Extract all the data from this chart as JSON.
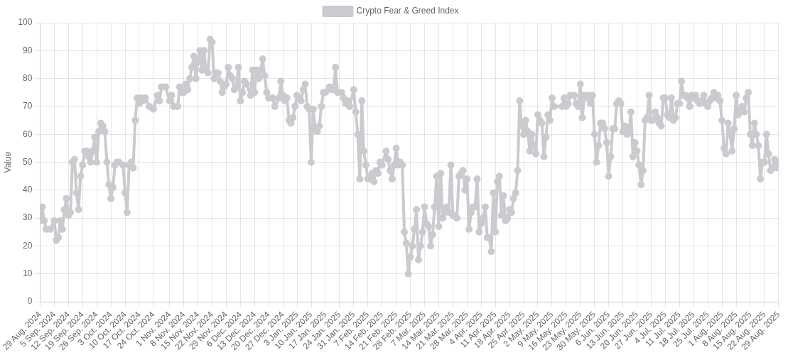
{
  "chart_data": {
    "type": "line",
    "ylabel": "Value",
    "legend": "top",
    "grid": true,
    "marker": "circle",
    "line_style": "solid",
    "xlim": [
      "2024-08-29",
      "2025-08-29"
    ],
    "ylim": [
      0,
      100
    ],
    "yticks": [
      0,
      10,
      20,
      30,
      40,
      50,
      60,
      70,
      80,
      90,
      100
    ],
    "xticks": [
      {
        "value": "2024-08-29",
        "label": "29 Aug. 2024"
      },
      {
        "value": "2024-09-05",
        "label": "5 Sep. 2024"
      },
      {
        "value": "2024-09-12",
        "label": "12 Sep. 2024"
      },
      {
        "value": "2024-09-19",
        "label": "19 Sep. 2024"
      },
      {
        "value": "2024-09-26",
        "label": "26 Sep. 2024"
      },
      {
        "value": "2024-10-03",
        "label": "3 Oct. 2024"
      },
      {
        "value": "2024-10-10",
        "label": "10 Oct. 2024"
      },
      {
        "value": "2024-10-17",
        "label": "17 Oct. 2024"
      },
      {
        "value": "2024-10-24",
        "label": "24 Oct. 2024"
      },
      {
        "value": "2024-11-01",
        "label": "1 Nov. 2024"
      },
      {
        "value": "2024-11-08",
        "label": "8 Nov. 2024"
      },
      {
        "value": "2024-11-15",
        "label": "15 Nov. 2024"
      },
      {
        "value": "2024-11-22",
        "label": "22 Nov. 2024"
      },
      {
        "value": "2024-11-29",
        "label": "29 Nov. 2024"
      },
      {
        "value": "2024-12-06",
        "label": "6 Dec. 2024"
      },
      {
        "value": "2024-12-13",
        "label": "13 Dec. 2024"
      },
      {
        "value": "2024-12-20",
        "label": "20 Dec. 2024"
      },
      {
        "value": "2024-12-27",
        "label": "27 Dec. 2024"
      },
      {
        "value": "2025-01-03",
        "label": "3 Jan. 2025"
      },
      {
        "value": "2025-01-10",
        "label": "10 Jan. 2025"
      },
      {
        "value": "2025-01-17",
        "label": "17 Jan. 2025"
      },
      {
        "value": "2025-01-24",
        "label": "24 Jan. 2025"
      },
      {
        "value": "2025-01-31",
        "label": "31 Jan. 2025"
      },
      {
        "value": "2025-02-07",
        "label": "7 Feb. 2025"
      },
      {
        "value": "2025-02-14",
        "label": "14 Feb. 2025"
      },
      {
        "value": "2025-02-21",
        "label": "21 Feb. 2025"
      },
      {
        "value": "2025-02-28",
        "label": "28 Feb. 2025"
      },
      {
        "value": "2025-03-07",
        "label": "7 Mar. 2025"
      },
      {
        "value": "2025-03-14",
        "label": "14 Mar. 2025"
      },
      {
        "value": "2025-03-21",
        "label": "21 Mar. 2025"
      },
      {
        "value": "2025-03-28",
        "label": "28 Mar. 2025"
      },
      {
        "value": "2025-04-04",
        "label": "4 Apr. 2025"
      },
      {
        "value": "2025-04-11",
        "label": "11 Apr. 2025"
      },
      {
        "value": "2025-04-18",
        "label": "18 Apr. 2025"
      },
      {
        "value": "2025-04-25",
        "label": "25 Apr. 2025"
      },
      {
        "value": "2025-05-02",
        "label": "2 May. 2025"
      },
      {
        "value": "2025-05-09",
        "label": "9 May. 2025"
      },
      {
        "value": "2025-05-16",
        "label": "16 May. 2025"
      },
      {
        "value": "2025-05-23",
        "label": "23 May. 2025"
      },
      {
        "value": "2025-05-30",
        "label": "30 May. 2025"
      },
      {
        "value": "2025-06-06",
        "label": "6 Jun. 2025"
      },
      {
        "value": "2025-06-13",
        "label": "13 Jun. 2025"
      },
      {
        "value": "2025-06-20",
        "label": "20 Jun. 2025"
      },
      {
        "value": "2025-06-27",
        "label": "27 Jun. 2025"
      },
      {
        "value": "2025-07-04",
        "label": "4 Jul. 2025"
      },
      {
        "value": "2025-07-11",
        "label": "11 Jul. 2025"
      },
      {
        "value": "2025-07-18",
        "label": "18 Jul. 2025"
      },
      {
        "value": "2025-07-25",
        "label": "25 Jul. 2025"
      },
      {
        "value": "2025-08-01",
        "label": "1 Aug. 2025"
      },
      {
        "value": "2025-08-08",
        "label": "8 Aug. 2025"
      },
      {
        "value": "2025-08-15",
        "label": "15 Aug. 2025"
      },
      {
        "value": "2025-08-22",
        "label": "22 Aug. 2025"
      },
      {
        "value": "2025-08-29",
        "label": "29 Aug. 2025"
      }
    ],
    "series": [
      {
        "name": "Crypto Fear & Greed Index",
        "color": "#c9cbcf",
        "x": [
          "2024-08-29",
          "2024-08-30",
          "2024-08-31",
          "2024-09-01",
          "2024-09-03",
          "2024-09-05",
          "2024-09-06",
          "2024-09-07",
          "2024-09-08",
          "2024-09-09",
          "2024-09-10",
          "2024-09-11",
          "2024-09-12",
          "2024-09-13",
          "2024-09-14",
          "2024-09-15",
          "2024-09-16",
          "2024-09-17",
          "2024-09-18",
          "2024-09-19",
          "2024-09-20",
          "2024-09-21",
          "2024-09-22",
          "2024-09-23",
          "2024-09-24",
          "2024-09-25",
          "2024-09-26",
          "2024-09-27",
          "2024-09-28",
          "2024-09-29",
          "2024-09-30",
          "2024-10-01",
          "2024-10-02",
          "2024-10-03",
          "2024-10-04",
          "2024-10-05",
          "2024-10-06",
          "2024-10-07",
          "2024-10-09",
          "2024-10-10",
          "2024-10-11",
          "2024-10-12",
          "2024-10-13",
          "2024-10-14",
          "2024-10-15",
          "2024-10-16",
          "2024-10-17",
          "2024-10-18",
          "2024-10-19",
          "2024-10-20",
          "2024-10-22",
          "2024-10-24",
          "2024-10-26",
          "2024-10-27",
          "2024-10-28",
          "2024-10-30",
          "2024-11-01",
          "2024-11-02",
          "2024-11-03",
          "2024-11-05",
          "2024-11-06",
          "2024-11-07",
          "2024-11-08",
          "2024-11-09",
          "2024-11-10",
          "2024-11-11",
          "2024-11-12",
          "2024-11-13",
          "2024-11-14",
          "2024-11-15",
          "2024-11-16",
          "2024-11-17",
          "2024-11-18",
          "2024-11-19",
          "2024-11-20",
          "2024-11-21",
          "2024-11-22",
          "2024-11-23",
          "2024-11-24",
          "2024-11-25",
          "2024-11-26",
          "2024-11-27",
          "2024-11-28",
          "2024-11-29",
          "2024-11-30",
          "2024-12-01",
          "2024-12-02",
          "2024-12-03",
          "2024-12-04",
          "2024-12-05",
          "2024-12-06",
          "2024-12-07",
          "2024-12-08",
          "2024-12-09",
          "2024-12-11",
          "2024-12-12",
          "2024-12-13",
          "2024-12-14",
          "2024-12-15",
          "2024-12-16",
          "2024-12-17",
          "2024-12-18",
          "2024-12-19",
          "2024-12-20",
          "2024-12-22",
          "2024-12-23",
          "2024-12-25",
          "2024-12-26",
          "2024-12-27",
          "2024-12-28",
          "2024-12-29",
          "2024-12-30",
          "2024-12-31",
          "2025-01-01",
          "2025-01-02",
          "2025-01-03",
          "2025-01-05",
          "2025-01-06",
          "2025-01-07",
          "2025-01-08",
          "2025-01-09",
          "2025-01-10",
          "2025-01-11",
          "2025-01-12",
          "2025-01-13",
          "2025-01-14",
          "2025-01-15",
          "2025-01-16",
          "2025-01-17",
          "2025-01-19",
          "2025-01-20",
          "2025-01-21",
          "2025-01-22",
          "2025-01-23",
          "2025-01-25",
          "2025-01-26",
          "2025-01-27",
          "2025-01-28",
          "2025-01-29",
          "2025-01-31",
          "2025-02-01",
          "2025-02-02",
          "2025-02-03",
          "2025-02-04",
          "2025-02-05",
          "2025-02-06",
          "2025-02-07",
          "2025-02-08",
          "2025-02-09",
          "2025-02-10",
          "2025-02-11",
          "2025-02-12",
          "2025-02-13",
          "2025-02-14",
          "2025-02-16",
          "2025-02-17",
          "2025-02-18",
          "2025-02-19",
          "2025-02-20",
          "2025-02-21",
          "2025-02-22",
          "2025-02-23",
          "2025-02-24",
          "2025-02-25",
          "2025-02-26",
          "2025-02-27",
          "2025-02-28",
          "2025-03-01",
          "2025-03-02",
          "2025-03-03",
          "2025-03-04",
          "2025-03-05",
          "2025-03-06",
          "2025-03-07",
          "2025-03-08",
          "2025-03-09",
          "2025-03-10",
          "2025-03-11",
          "2025-03-12",
          "2025-03-13",
          "2025-03-14",
          "2025-03-15",
          "2025-03-16",
          "2025-03-17",
          "2025-03-18",
          "2025-03-19",
          "2025-03-20",
          "2025-03-21",
          "2025-03-22",
          "2025-03-23",
          "2025-03-24",
          "2025-03-25",
          "2025-03-26",
          "2025-03-27",
          "2025-03-28",
          "2025-03-29",
          "2025-03-30",
          "2025-03-31",
          "2025-04-01",
          "2025-04-02",
          "2025-04-03",
          "2025-04-04",
          "2025-04-05",
          "2025-04-06",
          "2025-04-07",
          "2025-04-08",
          "2025-04-09",
          "2025-04-10",
          "2025-04-11",
          "2025-04-12",
          "2025-04-13",
          "2025-04-14",
          "2025-04-15",
          "2025-04-16",
          "2025-04-17",
          "2025-04-18",
          "2025-04-19",
          "2025-04-20",
          "2025-04-21",
          "2025-04-22",
          "2025-04-23",
          "2025-04-24",
          "2025-04-25",
          "2025-04-26",
          "2025-04-27",
          "2025-04-28",
          "2025-04-29",
          "2025-04-30",
          "2025-05-01",
          "2025-05-02",
          "2025-05-03",
          "2025-05-04",
          "2025-05-05",
          "2025-05-06",
          "2025-05-07",
          "2025-05-08",
          "2025-05-09",
          "2025-05-10",
          "2025-05-14",
          "2025-05-15",
          "2025-05-16",
          "2025-05-17",
          "2025-05-18",
          "2025-05-20",
          "2025-05-21",
          "2025-05-22",
          "2025-05-23",
          "2025-05-24",
          "2025-05-25",
          "2025-05-26",
          "2025-05-27",
          "2025-05-28",
          "2025-05-29",
          "2025-05-30",
          "2025-05-31",
          "2025-06-01",
          "2025-06-02",
          "2025-06-03",
          "2025-06-04",
          "2025-06-05",
          "2025-06-06",
          "2025-06-07",
          "2025-06-08",
          "2025-06-09",
          "2025-06-10",
          "2025-06-11",
          "2025-06-12",
          "2025-06-13",
          "2025-06-14",
          "2025-06-15",
          "2025-06-16",
          "2025-06-17",
          "2025-06-18",
          "2025-06-19",
          "2025-06-20",
          "2025-06-21",
          "2025-06-22",
          "2025-06-23",
          "2025-06-24",
          "2025-06-25",
          "2025-06-26",
          "2025-06-27",
          "2025-06-28",
          "2025-06-29",
          "2025-06-30",
          "2025-07-01",
          "2025-07-02",
          "2025-07-03",
          "2025-07-04",
          "2025-07-05",
          "2025-07-06",
          "2025-07-07",
          "2025-07-08",
          "2025-07-09",
          "2025-07-10",
          "2025-07-11",
          "2025-07-12",
          "2025-07-13",
          "2025-07-14",
          "2025-07-15",
          "2025-07-16",
          "2025-07-17",
          "2025-07-18",
          "2025-07-19",
          "2025-07-20",
          "2025-07-21",
          "2025-07-22",
          "2025-07-23",
          "2025-07-24",
          "2025-07-25",
          "2025-07-26",
          "2025-07-27",
          "2025-07-28",
          "2025-07-29",
          "2025-07-30",
          "2025-07-31",
          "2025-08-01",
          "2025-08-02",
          "2025-08-03",
          "2025-08-04",
          "2025-08-05",
          "2025-08-06",
          "2025-08-07",
          "2025-08-08",
          "2025-08-09",
          "2025-08-10",
          "2025-08-11",
          "2025-08-12",
          "2025-08-13",
          "2025-08-14",
          "2025-08-15",
          "2025-08-16",
          "2025-08-17",
          "2025-08-18",
          "2025-08-19",
          "2025-08-20",
          "2025-08-21",
          "2025-08-22",
          "2025-08-23",
          "2025-08-24",
          "2025-08-25",
          "2025-08-26",
          "2025-08-27",
          "2025-08-28",
          "2025-08-29"
        ],
        "values": [
          29,
          34,
          29,
          26,
          26,
          29,
          22,
          23,
          29,
          26,
          33,
          37,
          31,
          32,
          50,
          51,
          39,
          33,
          45,
          49,
          54,
          54,
          52,
          50,
          54,
          59,
          50,
          61,
          64,
          63,
          61,
          50,
          42,
          37,
          41,
          49,
          50,
          50,
          49,
          39,
          32,
          49,
          50,
          48,
          65,
          73,
          71,
          73,
          72,
          73,
          70,
          69,
          74,
          72,
          77,
          77,
          72,
          74,
          70,
          70,
          77,
          75,
          75,
          78,
          76,
          80,
          84,
          88,
          80,
          86,
          90,
          83,
          90,
          83,
          82,
          94,
          93,
          80,
          82,
          82,
          79,
          75,
          77,
          78,
          84,
          81,
          80,
          76,
          77,
          84,
          72,
          75,
          79,
          78,
          74,
          83,
          75,
          83,
          80,
          83,
          87,
          81,
          75,
          73,
          73,
          70,
          73,
          79,
          74,
          72,
          73,
          65,
          64,
          66,
          70,
          74,
          72,
          76,
          78,
          70,
          69,
          50,
          69,
          62,
          61,
          63,
          70,
          75,
          75,
          77,
          76,
          76,
          84,
          75,
          75,
          73,
          71,
          72,
          70,
          76,
          68,
          60,
          44,
          72,
          54,
          49,
          44,
          44,
          46,
          43,
          47,
          46,
          50,
          49,
          54,
          51,
          47,
          44,
          49,
          55,
          49,
          50,
          49,
          25,
          21,
          10,
          16,
          20,
          26,
          33,
          15,
          20,
          25,
          34,
          28,
          27,
          20,
          24,
          34,
          45,
          27,
          46,
          30,
          32,
          34,
          32,
          49,
          31,
          31,
          30,
          45,
          46,
          47,
          40,
          44,
          26,
          32,
          34,
          34,
          44,
          25,
          28,
          30,
          34,
          23,
          23,
          18,
          39,
          25,
          43,
          45,
          31,
          38,
          29,
          30,
          33,
          32,
          37,
          39,
          47,
          72,
          63,
          60,
          65,
          61,
          54,
          60,
          56,
          53,
          67,
          65,
          64,
          52,
          59,
          67,
          65,
          73,
          70,
          70,
          73,
          70,
          71,
          74,
          74,
          71,
          70,
          78,
          66,
          74,
          73,
          74,
          71,
          74,
          60,
          50,
          56,
          64,
          64,
          62,
          57,
          45,
          52,
          62,
          62,
          71,
          72,
          71,
          61,
          63,
          60,
          61,
          68,
          52,
          57,
          54,
          49,
          42,
          47,
          65,
          66,
          74,
          65,
          65,
          68,
          66,
          64,
          63,
          73,
          73,
          67,
          66,
          73,
          65,
          66,
          71,
          71,
          79,
          74,
          74,
          73,
          70,
          74,
          73,
          74,
          72,
          71,
          72,
          74,
          71,
          70,
          72,
          73,
          75,
          73,
          74,
          72,
          65,
          55,
          53,
          64,
          60,
          54,
          62,
          74,
          67,
          69,
          70,
          68,
          73,
          75,
          60,
          56,
          64,
          60,
          56,
          44,
          50,
          50,
          60,
          53,
          47,
          48,
          51,
          48,
          50
        ]
      }
    ]
  }
}
